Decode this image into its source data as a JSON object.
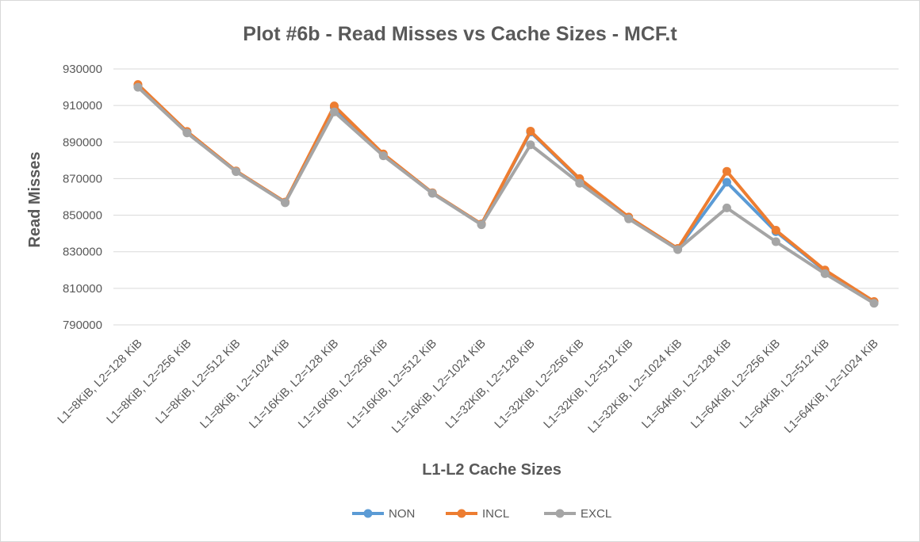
{
  "chart_data": {
    "type": "line",
    "title": "Plot #6b - Read Misses vs Cache Sizes - MCF.t",
    "xlabel": "L1-L2 Cache Sizes",
    "ylabel": "Read Misses",
    "ylim": [
      790000,
      930000
    ],
    "yticks": [
      790000,
      810000,
      830000,
      850000,
      870000,
      890000,
      910000,
      930000
    ],
    "grid": true,
    "legend_position": "bottom",
    "categories": [
      "L1=8KiB, L2=128 KiB",
      "L1=8KiB, L2=256 KiB",
      "L1=8KiB, L2=512 KiB",
      "L1=8KiB, L2=1024 KiB",
      "L1=16KiB, L2=128 KiB",
      "L1=16KiB, L2=256 KiB",
      "L1=16KiB, L2=512 KiB",
      "L1=16KiB, L2=1024 KiB",
      "L1=32KiB, L2=128 KiB",
      "L1=32KiB, L2=256 KiB",
      "L1=32KiB, L2=512 KiB",
      "L1=32KiB, L2=1024 KiB",
      "L1=64KiB, L2=128 KiB",
      "L1=64KiB, L2=256 KiB",
      "L1=64KiB, L2=512 KiB",
      "L1=64KiB, L2=1024 KiB"
    ],
    "series": [
      {
        "name": "NON",
        "color": "#5b9bd5",
        "values": [
          921000,
          895500,
          874000,
          857000,
          909000,
          883000,
          862000,
          845000,
          895500,
          869500,
          848500,
          831500,
          868000,
          841000,
          819500,
          802500
        ]
      },
      {
        "name": "INCL",
        "color": "#ed7d31",
        "values": [
          921500,
          895800,
          874200,
          857200,
          909800,
          883500,
          862300,
          845200,
          896000,
          870000,
          849000,
          831800,
          874000,
          841800,
          820000,
          802800
        ]
      },
      {
        "name": "EXCL",
        "color": "#a5a5a5",
        "values": [
          920000,
          895000,
          873800,
          856800,
          906500,
          882500,
          862000,
          844800,
          888500,
          867500,
          848000,
          831200,
          854000,
          835500,
          818000,
          801800
        ]
      }
    ]
  }
}
